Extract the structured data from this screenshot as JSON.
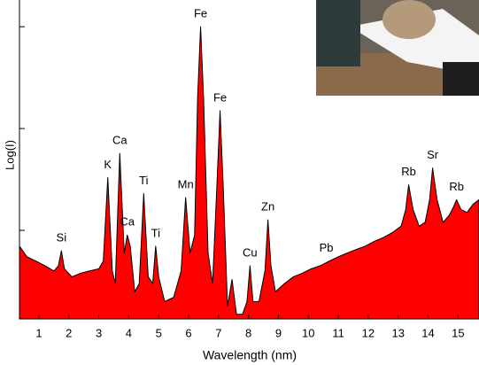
{
  "chart_data": {
    "type": "area",
    "ylabel": "Log(I)",
    "xlabel": "Wavelength (nm)",
    "log_y": true,
    "color": "#ff0000",
    "line_color": "#000000",
    "x": [
      0.35,
      0.6,
      0.9,
      1.2,
      1.5,
      1.65,
      1.75,
      1.85,
      2.1,
      2.4,
      2.7,
      3.0,
      3.15,
      3.3,
      3.45,
      3.55,
      3.7,
      3.85,
      3.95,
      4.05,
      4.2,
      4.35,
      4.5,
      4.65,
      4.8,
      4.9,
      5.0,
      5.2,
      5.5,
      5.75,
      5.9,
      6.05,
      6.2,
      6.3,
      6.4,
      6.5,
      6.65,
      6.8,
      6.95,
      7.05,
      7.15,
      7.3,
      7.45,
      7.6,
      7.8,
      7.95,
      8.05,
      8.15,
      8.35,
      8.55,
      8.65,
      8.75,
      8.9,
      9.2,
      9.5,
      9.8,
      10.1,
      10.4,
      10.7,
      11.0,
      11.3,
      11.6,
      11.9,
      12.2,
      12.5,
      12.8,
      13.1,
      13.25,
      13.35,
      13.5,
      13.7,
      13.9,
      14.05,
      14.15,
      14.3,
      14.5,
      14.7,
      14.85,
      14.95,
      15.1,
      15.3,
      15.5,
      15.7
    ],
    "values": [
      0.7,
      0.55,
      0.5,
      0.45,
      0.4,
      0.45,
      0.63,
      0.42,
      0.35,
      0.38,
      0.4,
      0.42,
      0.5,
      3.3,
      0.4,
      0.3,
      5.7,
      0.6,
      0.9,
      0.7,
      0.25,
      0.3,
      2.3,
      0.35,
      0.3,
      0.7,
      0.35,
      0.2,
      0.22,
      0.4,
      2.1,
      0.6,
      0.9,
      20,
      100,
      20,
      0.6,
      0.3,
      3,
      15,
      3,
      0.18,
      0.33,
      0.15,
      0.15,
      0.2,
      0.45,
      0.2,
      0.2,
      0.4,
      1.27,
      0.45,
      0.25,
      0.3,
      0.35,
      0.38,
      0.42,
      0.45,
      0.5,
      0.55,
      0.6,
      0.65,
      0.7,
      0.78,
      0.85,
      0.95,
      1.1,
      1.6,
      2.8,
      1.6,
      1.1,
      1.2,
      2.0,
      4.1,
      2.0,
      1.2,
      1.4,
      1.7,
      2.0,
      1.6,
      1.5,
      1.8,
      2.0
    ],
    "xlim": [
      0.35,
      15.7
    ],
    "xticks": [
      1,
      2,
      3,
      4,
      5,
      6,
      7,
      8,
      9,
      10,
      11,
      12,
      13,
      14,
      15
    ],
    "ylim": [
      0.135,
      183
    ],
    "yticks": [
      1,
      10,
      100
    ],
    "annotations": [
      {
        "text": "Si",
        "x": 1.75
      },
      {
        "text": "K",
        "x": 3.3
      },
      {
        "text": "Ca",
        "x": 3.7
      },
      {
        "text": "Ca",
        "x": 3.95
      },
      {
        "text": "Ti",
        "x": 4.5
      },
      {
        "text": "Ti",
        "x": 4.9
      },
      {
        "text": "Mn",
        "x": 5.9
      },
      {
        "text": "Fe",
        "x": 6.4
      },
      {
        "text": "Fe",
        "x": 7.05
      },
      {
        "text": "Cu",
        "x": 8.05
      },
      {
        "text": "Zn",
        "x": 8.65
      },
      {
        "text": "Pb",
        "x": 10.6
      },
      {
        "text": "Rb",
        "x": 13.35
      },
      {
        "text": "Sr",
        "x": 14.15
      },
      {
        "text": "Rb",
        "x": 14.95
      }
    ]
  }
}
